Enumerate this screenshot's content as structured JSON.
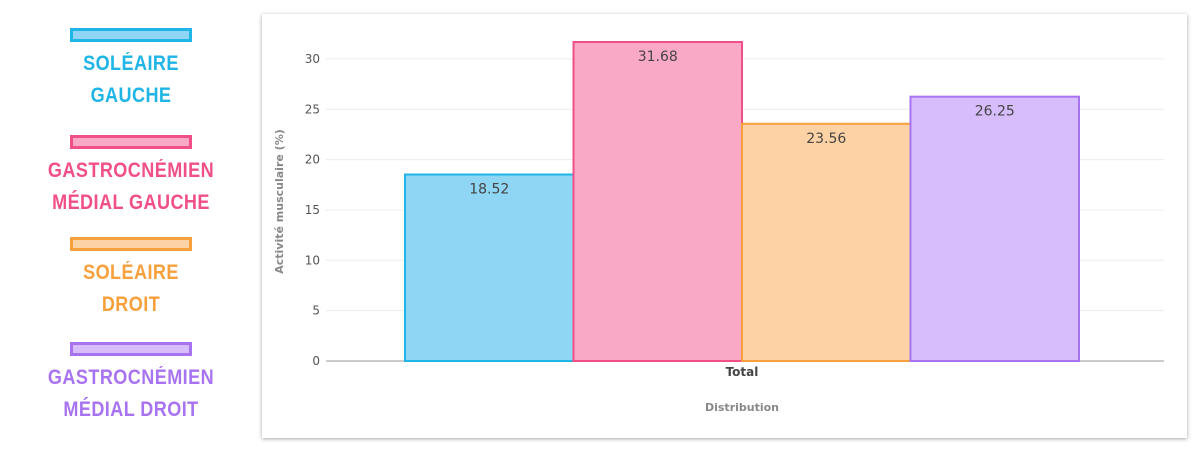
{
  "legend": {
    "items": [
      {
        "label": "SOLÉAIRE\nGAUCHE",
        "color": "#1fb5e6",
        "fill": "#8fd6f4"
      },
      {
        "label": "GASTROCNÉMIEN\nMÉDIAL GAUCHE",
        "color": "#f04f88",
        "fill": "#f9a8c6"
      },
      {
        "label": "SOLÉAIRE\nDROIT",
        "color": "#f7a03c",
        "fill": "#fdd3a5"
      },
      {
        "label": "GASTROCNÉMIEN\nMÉDIAL DROIT",
        "color": "#a873f0",
        "fill": "#d8bdfc"
      }
    ]
  },
  "chart_data": {
    "type": "bar",
    "categories": [
      "Total"
    ],
    "series": [
      {
        "name": "SOLÉAIRE GAUCHE",
        "values": [
          18.52
        ],
        "color": "#1fb5e6",
        "fill": "#8fd6f4"
      },
      {
        "name": "GASTROCNÉMIEN MÉDIAL GAUCHE",
        "values": [
          31.68
        ],
        "color": "#f04f88",
        "fill": "#f9a8c6"
      },
      {
        "name": "SOLÉAIRE DROIT",
        "values": [
          23.56
        ],
        "color": "#f7a03c",
        "fill": "#fdd3a5"
      },
      {
        "name": "GASTROCNÉMIEN MÉDIAL DROIT",
        "values": [
          26.25
        ],
        "color": "#a873f0",
        "fill": "#d8bdfc"
      }
    ],
    "data_labels": [
      "18.52",
      "31.68",
      "23.56",
      "26.25"
    ],
    "xlabel": "Distribution",
    "ylabel": "Activité musculaire (%)",
    "ylim": [
      0,
      31.68
    ],
    "yticks": [
      0,
      5,
      10,
      15,
      20,
      25,
      30
    ],
    "grid": true,
    "legend_placement": "left"
  }
}
